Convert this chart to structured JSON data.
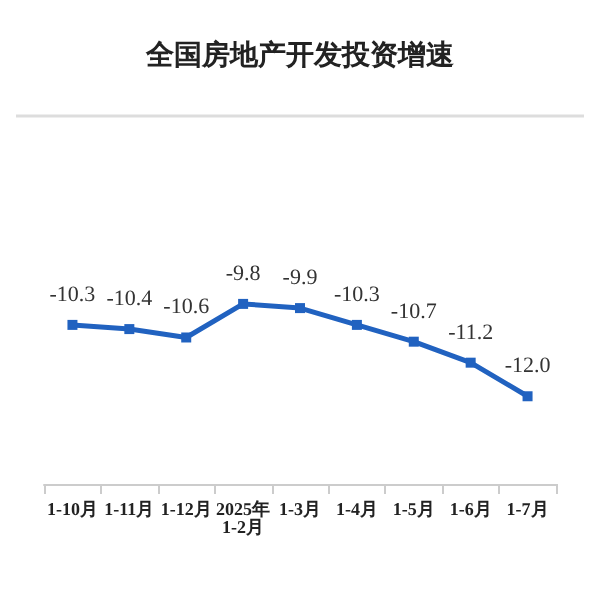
{
  "chart_data": {
    "type": "line",
    "title": "全国房地产开发投资增速",
    "categories": [
      "1-10月",
      "1-11月",
      "1-12月",
      "2025年\n1-2月",
      "1-3月",
      "1-4月",
      "1-5月",
      "1-6月",
      "1-7月"
    ],
    "values": [
      -10.3,
      -10.4,
      -10.6,
      -9.8,
      -9.9,
      -10.3,
      -10.7,
      -11.2,
      -12.0
    ],
    "value_labels": [
      "-10.3",
      "-10.4",
      "-10.6",
      "-9.8",
      "-9.9",
      "-10.3",
      "-10.7",
      "-11.2",
      "-12.0"
    ],
    "color": "#2162c0",
    "marker": "square"
  }
}
